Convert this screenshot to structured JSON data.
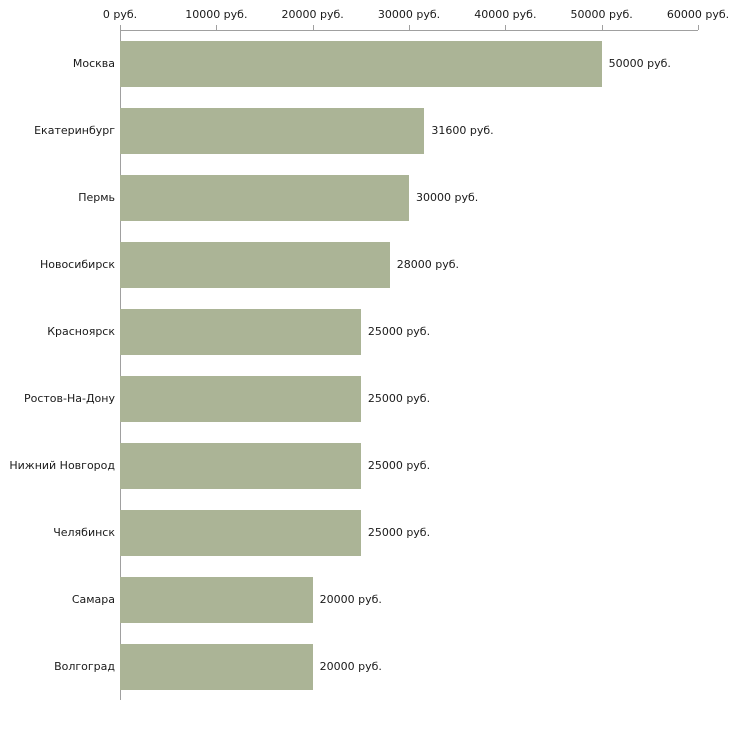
{
  "chart_data": {
    "type": "bar",
    "orientation": "horizontal",
    "title": "",
    "xlabel": "",
    "ylabel": "",
    "xlim": [
      0,
      60000
    ],
    "grid": false,
    "legend": false,
    "bar_color": "#abb496",
    "axis_color": "#a0a0a0",
    "text_color": "#1a1a1a",
    "categories": [
      "Москва",
      "Екатеринбург",
      "Пермь",
      "Новосибирск",
      "Красноярск",
      "Ростов-На-Дону",
      "Нижний Новгород",
      "Челябинск",
      "Самара",
      "Волгоград"
    ],
    "values": [
      50000,
      31600,
      30000,
      28000,
      25000,
      25000,
      25000,
      25000,
      20000,
      20000
    ],
    "value_labels": [
      "50000 руб.",
      "31600 руб.",
      "30000 руб.",
      "28000 руб.",
      "25000 руб.",
      "25000 руб.",
      "25000 руб.",
      "25000 руб.",
      "20000 руб.",
      "20000 руб."
    ],
    "x_ticks": [
      {
        "value": 0,
        "label": "0 руб."
      },
      {
        "value": 10000,
        "label": "10000 руб."
      },
      {
        "value": 20000,
        "label": "20000 руб."
      },
      {
        "value": 30000,
        "label": "30000 руб."
      },
      {
        "value": 40000,
        "label": "40000 руб."
      },
      {
        "value": 50000,
        "label": "50000 руб."
      },
      {
        "value": 60000,
        "label": "60000 руб."
      }
    ]
  }
}
